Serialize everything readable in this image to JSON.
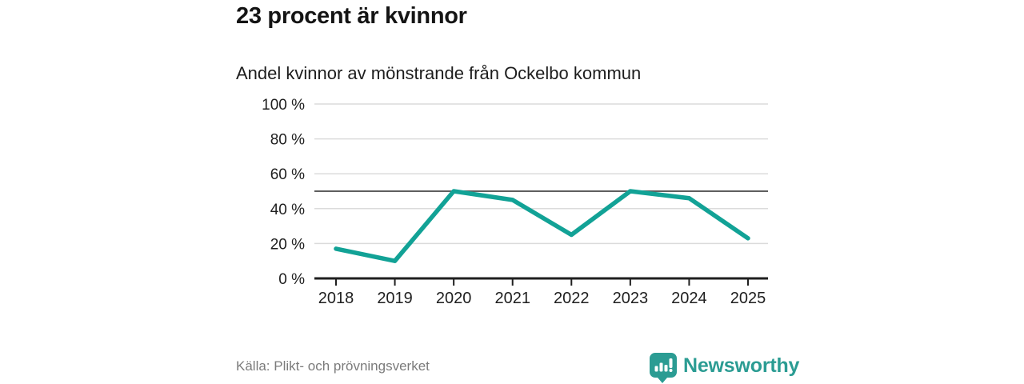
{
  "header": {
    "title": "23 procent är kvinnor",
    "subtitle": "Andel kvinnor av mönstrande från Ockelbo kommun"
  },
  "footer": {
    "source": "Källa: Plikt- och prövningsverket",
    "brand_name": "Newsworthy"
  },
  "colors": {
    "line": "#12a296",
    "reference_line": "#5f5f5f",
    "grid": "#dbdbdb",
    "axis": "#1f1f1f",
    "tick_label": "#1f1f1f",
    "brand": "#2b9c93"
  },
  "chart_data": {
    "type": "line",
    "title": "23 procent är kvinnor",
    "subtitle": "Andel kvinnor av mönstrande från Ockelbo kommun",
    "categories": [
      "2018",
      "2019",
      "2020",
      "2021",
      "2022",
      "2023",
      "2024",
      "2025"
    ],
    "series": [
      {
        "name": "Andel kvinnor av mönstrande",
        "values": [
          17,
          10,
          50,
          45,
          25,
          50,
          46,
          23
        ]
      }
    ],
    "unit": "%",
    "ylim": [
      0,
      100
    ],
    "yticks": [
      0,
      20,
      40,
      60,
      80,
      100
    ],
    "ytick_labels": [
      "0 %",
      "20 %",
      "40 %",
      "60 %",
      "80 %",
      "100 %"
    ],
    "reference_line": 50,
    "grid": true,
    "legend": "none"
  }
}
